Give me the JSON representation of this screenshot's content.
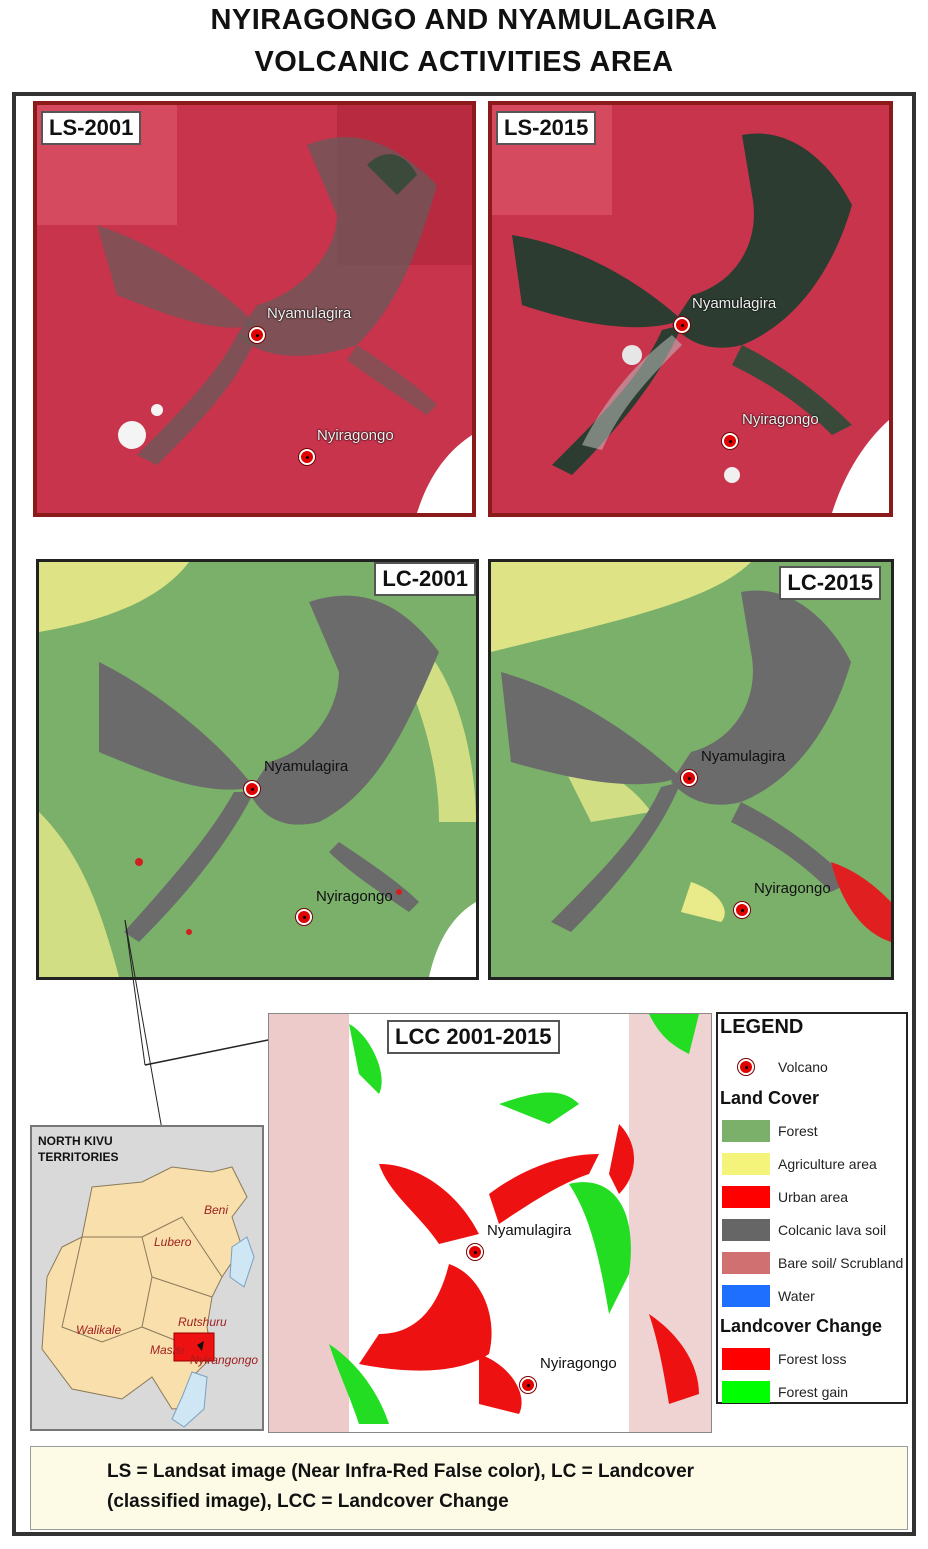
{
  "title": {
    "line1": "NYIRAGONGO AND NYAMULAGIRA",
    "line2": "VOLCANIC ACTIVITIES AREA"
  },
  "panels": {
    "ls2001": {
      "tag": "LS-2001",
      "nyamulagira": "Nyamulagira",
      "nyiragongo": "Nyiragongo"
    },
    "ls2015": {
      "tag": "LS-2015",
      "nyamulagira": "Nyamulagira",
      "nyiragongo": "Nyiragongo"
    },
    "lc2001": {
      "tag": "LC-2001",
      "nyamulagira": "Nyamulagira",
      "nyiragongo": "Nyiragongo"
    },
    "lc2015": {
      "tag": "LC-2015",
      "nyamulagira": "Nyamulagira",
      "nyiragongo": "Nyiragongo"
    },
    "lcc": {
      "tag": "LCC 2001-2015",
      "nyamulagira": "Nyamulagira",
      "nyiragongo": "Nyiragongo"
    }
  },
  "legend": {
    "title": "LEGEND",
    "volcano": "Volcano",
    "land_cover_title": "Land Cover",
    "land_cover": [
      {
        "label": "Forest",
        "color": "#7ab06a"
      },
      {
        "label": "Agriculture area",
        "color": "#f4f47a"
      },
      {
        "label": "Urban area",
        "color": "#ff0000"
      },
      {
        "label": "Colcanic lava soil",
        "color": "#666666"
      },
      {
        "label": "Bare soil/ Scrubland",
        "color": "#d07070"
      },
      {
        "label": "Water",
        "color": "#1e6fff"
      }
    ],
    "change_title": "Landcover Change",
    "change": [
      {
        "label": "Forest loss",
        "color": "#ff0000"
      },
      {
        "label": "Forest gain",
        "color": "#00ff00"
      }
    ]
  },
  "inset": {
    "title_line1": "NORTH KIVU",
    "title_line2": "TERRITORIES",
    "territories": [
      "Beni",
      "Lubero",
      "Walikale",
      "Rutshuru",
      "Masisi",
      "Nyirangongo"
    ]
  },
  "footer": {
    "line1": "LS = Landsat image (Near Infra-Red False color), LC = Landcover",
    "line2": "(classified image), LCC = Landcover Change"
  }
}
